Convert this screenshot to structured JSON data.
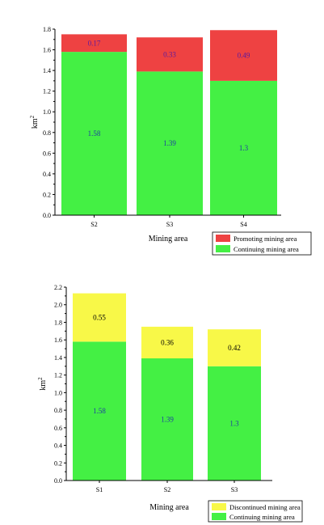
{
  "chart_data": [
    {
      "type": "bar",
      "stacked": true,
      "categories": [
        "S2",
        "S3",
        "S4"
      ],
      "series": [
        {
          "name": "Continuing mining area",
          "values": [
            1.58,
            1.39,
            1.3
          ],
          "color": "#44f044",
          "label_color": "#1f3fa0"
        },
        {
          "name": "Promoting mining area",
          "values": [
            0.17,
            0.33,
            0.49
          ],
          "color": "#ee4242",
          "label_color": "#5a1aa0"
        }
      ],
      "value_labels": {
        "Continuing mining area": [
          "1.58",
          "1.39",
          "1.3"
        ],
        "Promoting mining area": [
          "0.17",
          "0.33",
          "0.49"
        ]
      },
      "ylim": [
        0,
        1.8
      ],
      "yticks": [
        "0.0",
        "0.2",
        "0.4",
        "0.6",
        "0.8",
        "1.0",
        "1.2",
        "1.4",
        "1.6",
        "1.8"
      ],
      "xlabel": "Mining area",
      "ylabel": "km",
      "ylabel_superscript": "2",
      "legend_position": "bottom-right",
      "legend_order": [
        "Promoting mining area",
        "Continuing mining area"
      ]
    },
    {
      "type": "bar",
      "stacked": true,
      "categories": [
        "S1",
        "S2",
        "S3"
      ],
      "series": [
        {
          "name": "Continuing mining area",
          "values": [
            1.58,
            1.39,
            1.3
          ],
          "color": "#44f044",
          "label_color": "#1f3fa0"
        },
        {
          "name": "Discontinued mining area",
          "values": [
            0.55,
            0.36,
            0.42
          ],
          "color": "#f8f848",
          "label_color": "#000000"
        }
      ],
      "value_labels": {
        "Continuing mining area": [
          "1.58",
          "1.39",
          "1.3"
        ],
        "Discontinued mining area": [
          "0.55",
          "0.36",
          "0.42"
        ]
      },
      "ylim": [
        0,
        2.2
      ],
      "yticks": [
        "0.0",
        "0.2",
        "0.4",
        "0.6",
        "0.8",
        "1.0",
        "1.2",
        "1.4",
        "1.6",
        "1.8",
        "2.0",
        "2.2"
      ],
      "xlabel": "Mining area",
      "ylabel": "km",
      "ylabel_superscript": "2",
      "legend_position": "bottom-right",
      "legend_order": [
        "Discontinued mining area",
        "Continuing mining area"
      ]
    }
  ]
}
